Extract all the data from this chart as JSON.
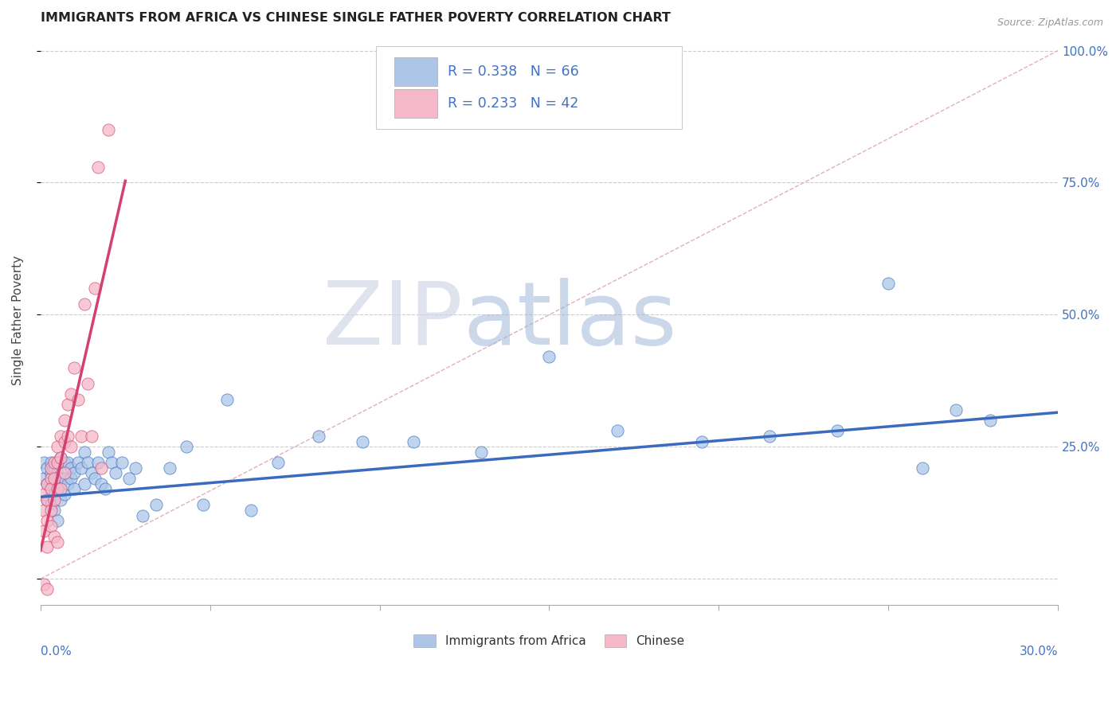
{
  "title": "IMMIGRANTS FROM AFRICA VS CHINESE SINGLE FATHER POVERTY CORRELATION CHART",
  "source": "Source: ZipAtlas.com",
  "ylabel": "Single Father Poverty",
  "legend_label1": "Immigrants from Africa",
  "legend_label2": "Chinese",
  "R1": 0.338,
  "N1": 66,
  "R2": 0.233,
  "N2": 42,
  "color1": "#adc6e8",
  "color2": "#f5b8c8",
  "line_color1": "#3a6bbf",
  "line_color2": "#d44070",
  "xlim": [
    0.0,
    0.3
  ],
  "ylim": [
    -0.05,
    1.03
  ],
  "blue_x": [
    0.001,
    0.001,
    0.002,
    0.002,
    0.002,
    0.003,
    0.003,
    0.003,
    0.003,
    0.004,
    0.004,
    0.004,
    0.004,
    0.005,
    0.005,
    0.005,
    0.005,
    0.006,
    0.006,
    0.006,
    0.007,
    0.007,
    0.007,
    0.008,
    0.008,
    0.009,
    0.009,
    0.01,
    0.01,
    0.011,
    0.012,
    0.013,
    0.013,
    0.014,
    0.015,
    0.016,
    0.017,
    0.018,
    0.019,
    0.02,
    0.021,
    0.022,
    0.024,
    0.026,
    0.028,
    0.03,
    0.034,
    0.038,
    0.043,
    0.048,
    0.055,
    0.062,
    0.07,
    0.082,
    0.095,
    0.11,
    0.13,
    0.15,
    0.17,
    0.195,
    0.215,
    0.235,
    0.25,
    0.26,
    0.27,
    0.28
  ],
  "blue_y": [
    0.19,
    0.22,
    0.21,
    0.18,
    0.15,
    0.2,
    0.22,
    0.17,
    0.14,
    0.18,
    0.21,
    0.16,
    0.13,
    0.2,
    0.22,
    0.17,
    0.11,
    0.23,
    0.19,
    0.15,
    0.22,
    0.19,
    0.16,
    0.22,
    0.18,
    0.21,
    0.19,
    0.2,
    0.17,
    0.22,
    0.21,
    0.24,
    0.18,
    0.22,
    0.2,
    0.19,
    0.22,
    0.18,
    0.17,
    0.24,
    0.22,
    0.2,
    0.22,
    0.19,
    0.21,
    0.12,
    0.14,
    0.21,
    0.25,
    0.14,
    0.34,
    0.13,
    0.22,
    0.27,
    0.26,
    0.26,
    0.24,
    0.42,
    0.28,
    0.26,
    0.27,
    0.28,
    0.56,
    0.21,
    0.32,
    0.3
  ],
  "pink_x": [
    0.001,
    0.001,
    0.001,
    0.001,
    0.002,
    0.002,
    0.002,
    0.002,
    0.002,
    0.003,
    0.003,
    0.003,
    0.003,
    0.003,
    0.004,
    0.004,
    0.004,
    0.004,
    0.005,
    0.005,
    0.005,
    0.005,
    0.006,
    0.006,
    0.006,
    0.007,
    0.007,
    0.007,
    0.008,
    0.008,
    0.009,
    0.009,
    0.01,
    0.011,
    0.012,
    0.013,
    0.014,
    0.015,
    0.016,
    0.017,
    0.018,
    0.02
  ],
  "pink_y": [
    0.13,
    0.16,
    0.09,
    -0.01,
    0.11,
    0.15,
    0.18,
    0.06,
    -0.02,
    0.19,
    0.21,
    0.17,
    0.13,
    0.1,
    0.22,
    0.19,
    0.15,
    0.08,
    0.25,
    0.22,
    0.17,
    0.07,
    0.27,
    0.23,
    0.17,
    0.3,
    0.26,
    0.2,
    0.27,
    0.33,
    0.35,
    0.25,
    0.4,
    0.34,
    0.27,
    0.52,
    0.37,
    0.27,
    0.55,
    0.78,
    0.21,
    0.85
  ]
}
